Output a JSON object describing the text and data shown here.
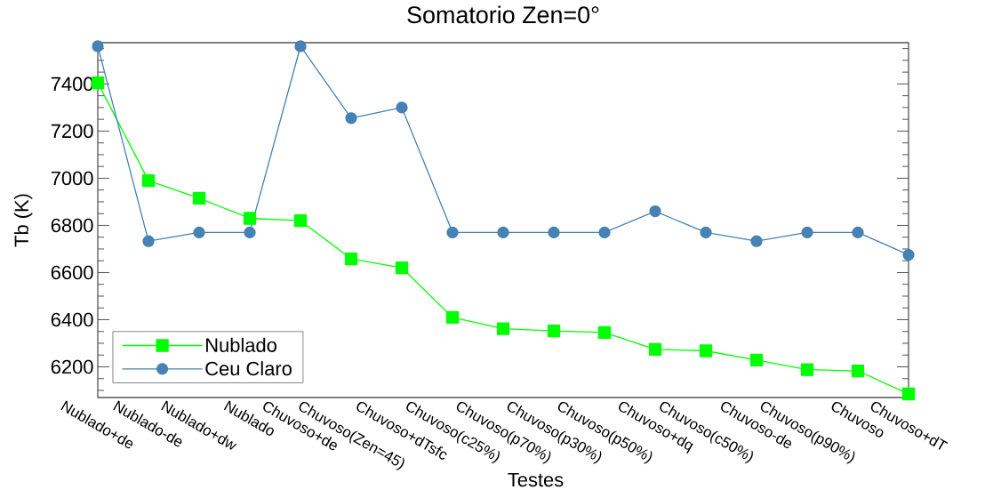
{
  "chart_data": {
    "type": "line",
    "title": "Somatorio Zen=0°",
    "xlabel": "Testes",
    "ylabel": "Tb (K)",
    "categories": [
      "Nublado+de",
      "Nublado-de",
      "Nublado+dw",
      "Nublado",
      "Chuvoso+de",
      "Chuvoso(Zen=45)",
      "Chuvoso+dTsfc",
      "Chuvoso(c25%)",
      "Chuvoso(p70%)",
      "Chuvoso(p30%)",
      "Chuvoso(p50%)",
      "Chuvoso+dq",
      "Chuvoso(c50%)",
      "Chuvoso-de",
      "Chuvoso(p90%)",
      "Chuvoso",
      "Chuvoso+dT"
    ],
    "series": [
      {
        "name": "Nublado",
        "color": "#00ff00",
        "marker": "square",
        "values": [
          7405,
          6990,
          6915,
          6830,
          6820,
          6658,
          6620,
          6410,
          6362,
          6352,
          6346,
          6274,
          6268,
          6229,
          6188,
          6183,
          6085
        ]
      },
      {
        "name": "Ceu Claro",
        "color": "#4682b4",
        "marker": "circle",
        "values": [
          7560,
          6733,
          6770,
          6770,
          7560,
          7255,
          7300,
          6770,
          6770,
          6770,
          6770,
          6860,
          6770,
          6733,
          6770,
          6770,
          6675
        ]
      }
    ],
    "ylim": [
      6070,
      7575
    ],
    "yticks": [
      {
        "value": 6100,
        "label": null
      },
      {
        "value": 6150,
        "label": null
      },
      6200,
      {
        "value": 6250,
        "label": null
      },
      {
        "value": 6300,
        "label": null
      },
      {
        "value": 6350,
        "label": null
      },
      6400,
      {
        "value": 6450,
        "label": null
      },
      {
        "value": 6500,
        "label": null
      },
      {
        "value": 6550,
        "label": null
      },
      6600,
      {
        "value": 6650,
        "label": null
      },
      {
        "value": 6700,
        "label": null
      },
      {
        "value": 6750,
        "label": null
      },
      6800,
      {
        "value": 6850,
        "label": null
      },
      {
        "value": 6900,
        "label": null
      },
      {
        "value": 6950,
        "label": null
      },
      7000,
      {
        "value": 7050,
        "label": null
      },
      {
        "value": 7100,
        "label": null
      },
      {
        "value": 7150,
        "label": null
      },
      7200,
      {
        "value": 7250,
        "label": null
      },
      {
        "value": 7300,
        "label": null
      },
      {
        "value": 7350,
        "label": null
      },
      7400,
      {
        "value": 7450,
        "label": null
      },
      {
        "value": 7500,
        "label": null
      },
      {
        "value": 7550,
        "label": null
      }
    ],
    "legend": "bottom left",
    "line_style": "solid"
  }
}
